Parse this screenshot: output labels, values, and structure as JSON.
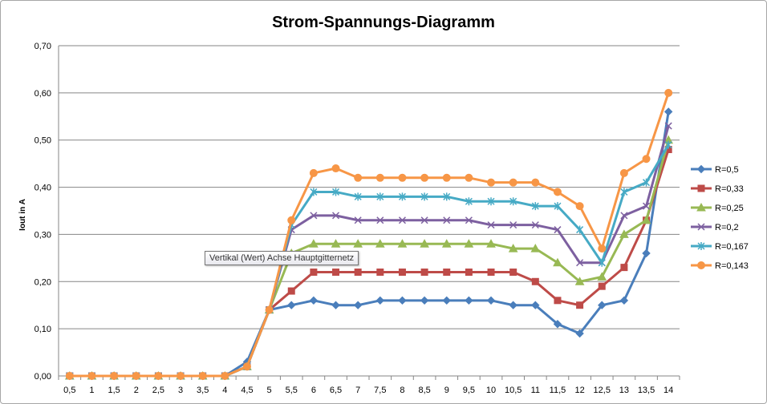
{
  "chart_data": {
    "type": "line",
    "title": "Strom-Spannungs-Diagramm",
    "xlabel": "",
    "ylabel": "Iout in A",
    "categories": [
      "0,5",
      "1",
      "1,5",
      "2",
      "2,5",
      "3",
      "3,5",
      "4",
      "4,5",
      "5",
      "5,5",
      "6",
      "6,5",
      "7",
      "7,5",
      "8",
      "8,5",
      "9",
      "9,5",
      "10",
      "10,5",
      "11",
      "11,5",
      "12",
      "12,5",
      "13",
      "13,5",
      "14"
    ],
    "y_ticks": [
      "0,00",
      "0,10",
      "0,20",
      "0,30",
      "0,40",
      "0,50",
      "0,60",
      "0,70"
    ],
    "ylim": [
      0,
      0.7
    ],
    "grid": "horizontal",
    "legend_position": "right",
    "series": [
      {
        "name": "R=0,5",
        "color": "#4a7ebb",
        "marker": "diamond",
        "values": [
          0,
          0,
          0,
          0,
          0,
          0,
          0,
          0,
          0.03,
          0.14,
          0.15,
          0.16,
          0.15,
          0.15,
          0.16,
          0.16,
          0.16,
          0.16,
          0.16,
          0.16,
          0.15,
          0.15,
          0.11,
          0.09,
          0.15,
          0.16,
          0.26,
          0.56
        ]
      },
      {
        "name": "R=0,33",
        "color": "#be4b48",
        "marker": "square",
        "values": [
          0,
          0,
          0,
          0,
          0,
          0,
          0,
          0,
          0.02,
          0.14,
          0.18,
          0.22,
          0.22,
          0.22,
          0.22,
          0.22,
          0.22,
          0.22,
          0.22,
          0.22,
          0.22,
          0.2,
          0.16,
          0.15,
          0.19,
          0.23,
          0.33,
          0.48
        ]
      },
      {
        "name": "R=0,25",
        "color": "#98b954",
        "marker": "triangle",
        "values": [
          0,
          0,
          0,
          0,
          0,
          0,
          0,
          0,
          0.02,
          0.14,
          0.26,
          0.28,
          0.28,
          0.28,
          0.28,
          0.28,
          0.28,
          0.28,
          0.28,
          0.28,
          0.27,
          0.27,
          0.24,
          0.2,
          0.21,
          0.3,
          0.33,
          0.5
        ]
      },
      {
        "name": "R=0,2",
        "color": "#7d60a0",
        "marker": "x",
        "values": [
          0,
          0,
          0,
          0,
          0,
          0,
          0,
          0,
          0.02,
          0.14,
          0.31,
          0.34,
          0.34,
          0.33,
          0.33,
          0.33,
          0.33,
          0.33,
          0.33,
          0.32,
          0.32,
          0.32,
          0.31,
          0.24,
          0.24,
          0.34,
          0.36,
          0.53
        ]
      },
      {
        "name": "R=0,167",
        "color": "#46aac5",
        "marker": "star",
        "values": [
          0,
          0,
          0,
          0,
          0,
          0,
          0,
          0,
          0.02,
          0.14,
          0.32,
          0.39,
          0.39,
          0.38,
          0.38,
          0.38,
          0.38,
          0.38,
          0.37,
          0.37,
          0.37,
          0.36,
          0.36,
          0.31,
          0.24,
          0.39,
          0.41,
          0.49
        ]
      },
      {
        "name": "R=0,143",
        "color": "#f79646",
        "marker": "circle",
        "values": [
          0,
          0,
          0,
          0,
          0,
          0,
          0,
          0,
          0.02,
          0.14,
          0.33,
          0.43,
          0.44,
          0.42,
          0.42,
          0.42,
          0.42,
          0.42,
          0.42,
          0.41,
          0.41,
          0.41,
          0.39,
          0.36,
          0.27,
          0.43,
          0.46,
          0.6
        ]
      }
    ]
  },
  "tooltip": {
    "text": "Vertikal (Wert) Achse Hauptgitternetz"
  }
}
